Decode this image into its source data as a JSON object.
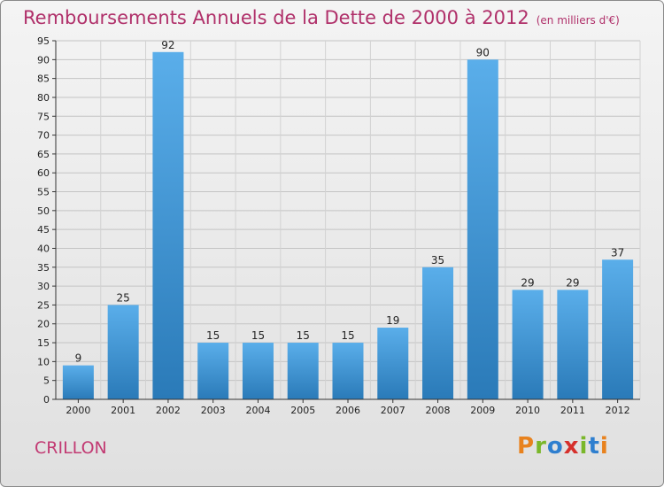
{
  "chart_data": {
    "type": "bar",
    "title": "Remboursements Annuels de la Dette de 2000 à 2012",
    "subtitle": "(en milliers d'€)",
    "xlabel": "",
    "ylabel": "",
    "categories": [
      "2000",
      "2001",
      "2002",
      "2003",
      "2004",
      "2005",
      "2006",
      "2007",
      "2008",
      "2009",
      "2010",
      "2011",
      "2012"
    ],
    "values": [
      9,
      25,
      92,
      15,
      15,
      15,
      15,
      19,
      35,
      90,
      29,
      29,
      37
    ],
    "ylim": [
      0,
      95
    ],
    "yticks": [
      0,
      5,
      10,
      15,
      20,
      25,
      30,
      35,
      40,
      45,
      50,
      55,
      60,
      65,
      70,
      75,
      80,
      85,
      90,
      95
    ],
    "grid": true,
    "bar_color": "#4aa0e0",
    "show_value_labels": true
  },
  "footer": {
    "commune": "CRILLON",
    "brand": "Proxiti",
    "brand_colors": [
      "#e8821e",
      "#7ab72a",
      "#2f7fcf",
      "#d6302c",
      "#7ab72a",
      "#2f7fcf",
      "#e8821e"
    ]
  },
  "colors": {
    "title": "#b0306a",
    "commune": "#c23a73"
  }
}
